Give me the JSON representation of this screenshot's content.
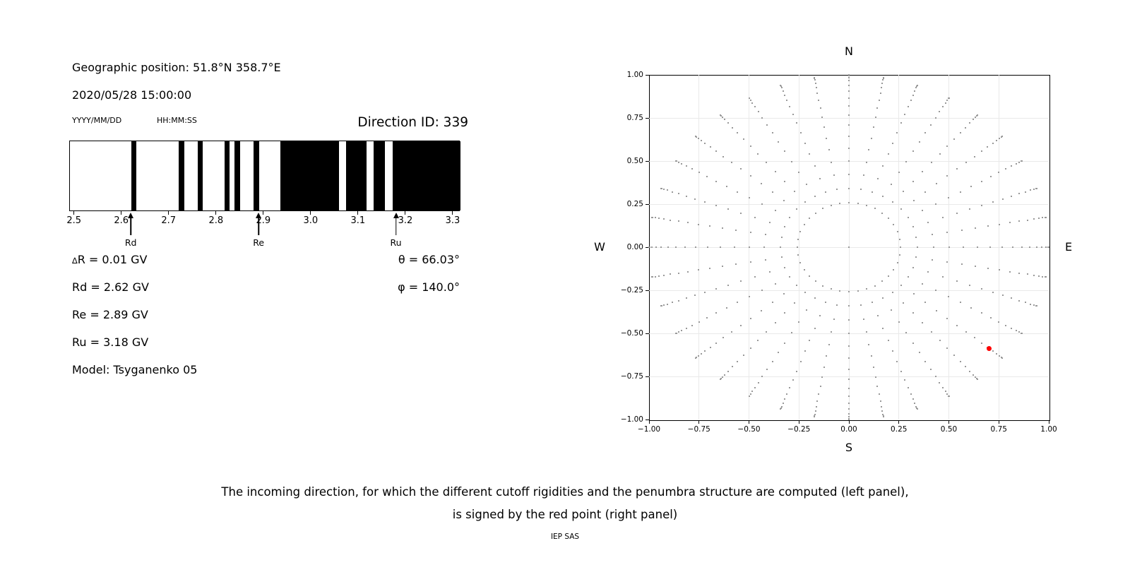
{
  "left_panel": {
    "geo_position": "Geographic position: 51.8°N 358.7°E",
    "datetime": "2020/05/28 15:00:00",
    "date_format_label": "YYYY/MM/DD",
    "time_format_label": "HH:MM:SS",
    "direction_id": "Direction ID: 339",
    "params": {
      "delta_r": "∆R = 0.01 GV",
      "rd": "Rd = 2.62 GV",
      "re": "Re = 2.89 GV",
      "ru": "Ru = 3.18 GV",
      "model": "Model: Tsyganenko 05",
      "theta": "θ = 66.03°",
      "phi": "φ = 140.0°"
    }
  },
  "chart_data": [
    {
      "type": "bar",
      "name": "penumbra-structure",
      "xlim": [
        2.49,
        3.315
      ],
      "x_ticks": [
        2.5,
        2.6,
        2.7,
        2.8,
        2.9,
        3.0,
        3.1,
        3.2,
        3.3
      ],
      "x_tick_labels": [
        "2.5",
        "2.6",
        "2.7",
        "2.8",
        "2.9",
        "3.0",
        "3.1",
        "3.2",
        "3.3"
      ],
      "bar_color": "#000000",
      "background_color": "#ffffff",
      "allowed_intervals_gv": [
        [
          2.62,
          2.631
        ],
        [
          2.72,
          2.731
        ],
        [
          2.76,
          2.771
        ],
        [
          2.816,
          2.827
        ],
        [
          2.838,
          2.85
        ],
        [
          2.878,
          2.89
        ],
        [
          2.934,
          3.058
        ],
        [
          3.073,
          3.116
        ],
        [
          3.131,
          3.155
        ],
        [
          3.172,
          3.315
        ]
      ],
      "cutoff_markers": [
        {
          "label": "Rd",
          "value_gv": 2.62
        },
        {
          "label": "Re",
          "value_gv": 2.89
        },
        {
          "label": "Ru",
          "value_gv": 3.18
        }
      ]
    },
    {
      "type": "scatter",
      "name": "incoming-direction-map",
      "xlim": [
        -1,
        1
      ],
      "ylim": [
        -1,
        1
      ],
      "x_ticks": [
        -1,
        -0.75,
        -0.5,
        -0.25,
        0,
        0.25,
        0.5,
        0.75,
        1
      ],
      "x_tick_labels": [
        "−1.00",
        "−0.75",
        "−0.50",
        "−0.25",
        "0.00",
        "0.25",
        "0.50",
        "0.75",
        "1.00"
      ],
      "y_ticks": [
        1,
        0.75,
        0.5,
        0.25,
        0,
        -0.25,
        -0.5,
        -0.75,
        -1
      ],
      "y_tick_labels": [
        "1.00",
        "0.75",
        "0.50",
        "0.25",
        "0.00",
        "−0.25",
        "−0.50",
        "−0.75",
        "−1.00"
      ],
      "grid": true,
      "grid_color": "#e9e9e9",
      "compass_labels": {
        "top": "N",
        "bottom": "S",
        "left": "W",
        "right": "E"
      },
      "direction_grid": {
        "azimuth_start_deg": 0,
        "azimuth_step_deg": 10,
        "azimuth_count": 36,
        "zenith_start_deg": 15,
        "zenith_step_deg": 5,
        "zenith_end_deg": 90,
        "radius_rule": "r = sin(zenith)",
        "center_point": [
          0,
          0
        ]
      },
      "dot_color": "#999999",
      "red_point": {
        "x": 0.7,
        "y": -0.59,
        "color": "#ff0000"
      }
    }
  ],
  "caption": {
    "line1": "The incoming direction, for which the different cutoff rigidities and the penumbra structure are computed (left panel),",
    "line2": "is signed by the red point (right panel)",
    "credit": "IEP SAS"
  }
}
